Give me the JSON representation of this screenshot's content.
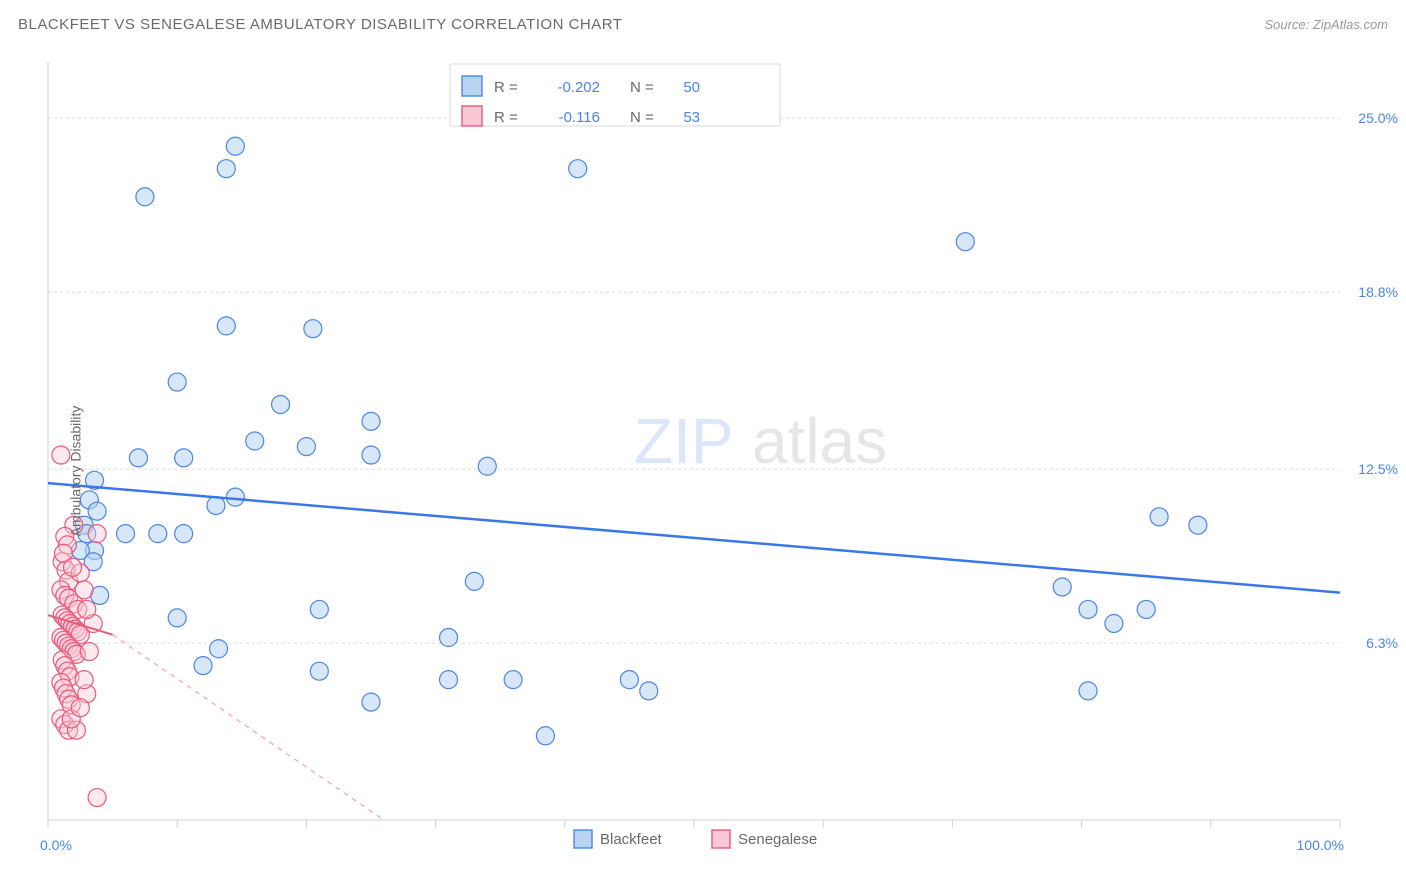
{
  "header": {
    "title": "BLACKFEET VS SENEGALESE AMBULATORY DISABILITY CORRELATION CHART",
    "source": "Source: ZipAtlas.com"
  },
  "chart": {
    "type": "scatter",
    "ylabel": "Ambulatory Disability",
    "watermark_zip": "ZIP",
    "watermark_atlas": "atlas",
    "background_color": "#ffffff",
    "grid_color": "#d9d9d9",
    "axis_color": "#d0d0d0",
    "xlim": [
      0,
      100
    ],
    "ylim": [
      0,
      27
    ],
    "x_ticks": [
      0,
      10,
      20,
      30,
      40,
      50,
      60,
      70,
      80,
      90,
      100
    ],
    "x_tick_labels": {
      "0": "0.0%",
      "100": "100.0%"
    },
    "y_grid": [
      6.3,
      12.5,
      18.8,
      25.0
    ],
    "y_tick_labels": [
      "6.3%",
      "12.5%",
      "18.8%",
      "25.0%"
    ],
    "legend_top": {
      "rows": [
        {
          "swatch_fill": "#b8d4f0",
          "swatch_stroke": "#4a86e8",
          "r_label": "R =",
          "r_value": "-0.202",
          "n_label": "N =",
          "n_value": "50"
        },
        {
          "swatch_fill": "#f8c8d4",
          "swatch_stroke": "#e85a7a",
          "r_label": "R =",
          "r_value": "-0.116",
          "n_label": "N =",
          "n_value": "53"
        }
      ]
    },
    "legend_bottom": [
      {
        "swatch_fill": "#b8d4f0",
        "swatch_stroke": "#4a86e8",
        "label": "Blackfeet"
      },
      {
        "swatch_fill": "#f8c8d4",
        "swatch_stroke": "#e85a7a",
        "label": "Senegalese"
      }
    ],
    "series": [
      {
        "name": "Blackfeet",
        "marker_fill": "#b8d4f0",
        "marker_stroke": "#4a86e8",
        "marker_fill_opacity": 0.55,
        "marker_radius": 9,
        "trend": {
          "y_at_x0": 12.0,
          "y_at_x100": 8.1,
          "stroke": "#3b78e7",
          "width": 2.5,
          "dash": "none"
        },
        "trend_ext": null,
        "points": [
          [
            7.5,
            22.2
          ],
          [
            14.5,
            24.0
          ],
          [
            13.8,
            23.2
          ],
          [
            41.0,
            23.2
          ],
          [
            13.8,
            17.6
          ],
          [
            20.5,
            17.5
          ],
          [
            10.0,
            15.6
          ],
          [
            18.0,
            14.8
          ],
          [
            25.0,
            14.2
          ],
          [
            16.0,
            13.5
          ],
          [
            20.0,
            13.3
          ],
          [
            25.0,
            13.0
          ],
          [
            7.0,
            12.9
          ],
          [
            10.5,
            12.9
          ],
          [
            3.6,
            12.1
          ],
          [
            3.2,
            11.4
          ],
          [
            14.5,
            11.5
          ],
          [
            34.0,
            12.6
          ],
          [
            2.8,
            10.5
          ],
          [
            3.0,
            10.2
          ],
          [
            6.0,
            10.2
          ],
          [
            8.5,
            10.2
          ],
          [
            10.5,
            10.2
          ],
          [
            13.0,
            11.2
          ],
          [
            3.6,
            9.6
          ],
          [
            2.5,
            9.6
          ],
          [
            3.5,
            9.2
          ],
          [
            3.8,
            11.0
          ],
          [
            33.0,
            8.5
          ],
          [
            21.0,
            7.5
          ],
          [
            10.0,
            7.2
          ],
          [
            12.0,
            5.5
          ],
          [
            21.0,
            5.3
          ],
          [
            25.0,
            4.2
          ],
          [
            31.0,
            5.0
          ],
          [
            31.0,
            6.5
          ],
          [
            36.0,
            5.0
          ],
          [
            38.5,
            3.0
          ],
          [
            45.0,
            5.0
          ],
          [
            46.5,
            4.6
          ],
          [
            71.0,
            20.6
          ],
          [
            86.0,
            10.8
          ],
          [
            89.0,
            10.5
          ],
          [
            78.5,
            8.3
          ],
          [
            80.5,
            7.5
          ],
          [
            82.5,
            7.0
          ],
          [
            85.0,
            7.5
          ],
          [
            80.5,
            4.6
          ],
          [
            13.2,
            6.1
          ],
          [
            4.0,
            8.0
          ]
        ]
      },
      {
        "name": "Senegalese",
        "marker_fill": "#f8c8d4",
        "marker_stroke": "#e85a7a",
        "marker_fill_opacity": 0.4,
        "marker_radius": 9,
        "trend": {
          "y_at_x0": 7.3,
          "y_at_x5": 6.6,
          "stroke": "#e85a7a",
          "width": 2,
          "dash": "none",
          "x_end": 5
        },
        "trend_ext": {
          "from_x": 5,
          "from_y": 6.6,
          "to_x": 26,
          "to_y": 0,
          "stroke": "#f2a6b8",
          "width": 1.3,
          "dash": "5,5"
        },
        "points": [
          [
            1.0,
            13.0
          ],
          [
            2.0,
            10.5
          ],
          [
            1.3,
            10.1
          ],
          [
            1.5,
            9.8
          ],
          [
            3.8,
            10.2
          ],
          [
            1.1,
            9.2
          ],
          [
            1.4,
            8.9
          ],
          [
            1.6,
            8.5
          ],
          [
            1.0,
            8.2
          ],
          [
            1.3,
            8.0
          ],
          [
            1.6,
            7.9
          ],
          [
            2.0,
            7.7
          ],
          [
            2.3,
            7.5
          ],
          [
            1.1,
            7.3
          ],
          [
            1.3,
            7.2
          ],
          [
            1.5,
            7.1
          ],
          [
            1.7,
            7.0
          ],
          [
            1.9,
            6.9
          ],
          [
            2.1,
            6.8
          ],
          [
            2.3,
            6.7
          ],
          [
            2.5,
            6.6
          ],
          [
            1.0,
            6.5
          ],
          [
            1.2,
            6.4
          ],
          [
            1.4,
            6.3
          ],
          [
            1.6,
            6.2
          ],
          [
            1.8,
            6.1
          ],
          [
            2.0,
            6.0
          ],
          [
            2.2,
            5.9
          ],
          [
            1.1,
            5.7
          ],
          [
            1.3,
            5.5
          ],
          [
            1.5,
            5.3
          ],
          [
            1.7,
            5.1
          ],
          [
            1.0,
            4.9
          ],
          [
            1.2,
            4.7
          ],
          [
            1.4,
            4.5
          ],
          [
            3.0,
            4.5
          ],
          [
            1.6,
            4.3
          ],
          [
            1.8,
            4.1
          ],
          [
            1.0,
            3.6
          ],
          [
            1.3,
            3.4
          ],
          [
            1.6,
            3.2
          ],
          [
            2.2,
            3.2
          ],
          [
            1.8,
            3.6
          ],
          [
            2.5,
            4.0
          ],
          [
            2.8,
            5.0
          ],
          [
            3.2,
            6.0
          ],
          [
            3.5,
            7.0
          ],
          [
            3.0,
            7.5
          ],
          [
            2.8,
            8.2
          ],
          [
            2.5,
            8.8
          ],
          [
            3.8,
            0.8
          ],
          [
            1.2,
            9.5
          ],
          [
            1.9,
            9.0
          ]
        ]
      }
    ]
  }
}
